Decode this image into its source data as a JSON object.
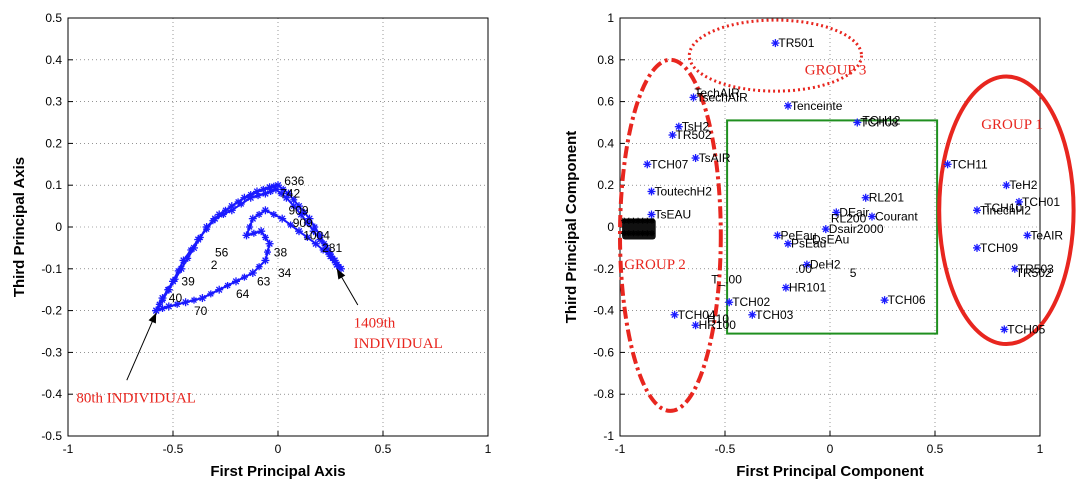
{
  "chart_data": [
    {
      "type": "scatter",
      "title": "",
      "xlabel": "First Principal Axis",
      "ylabel": "Third Principal Axis",
      "xlim": [
        -1,
        1
      ],
      "ylim": [
        -0.5,
        0.5
      ],
      "grid": true,
      "x_ticks": [
        "-1",
        "-0.5",
        "0",
        "0.5",
        "1"
      ],
      "y_ticks": [
        "0.5",
        "0.4",
        "0.3",
        "0.2",
        "0.1",
        "0",
        "-0.1",
        "-0.2",
        "-0.3",
        "-0.4",
        "-0.5"
      ],
      "marker_color": "#1a1aff",
      "loop": [
        [
          -0.58,
          -0.2
        ],
        [
          -0.52,
          -0.15
        ],
        [
          -0.46,
          -0.1
        ],
        [
          -0.4,
          -0.05
        ],
        [
          -0.34,
          0.0
        ],
        [
          -0.28,
          0.03
        ],
        [
          -0.22,
          0.05
        ],
        [
          -0.16,
          0.07
        ],
        [
          -0.1,
          0.085
        ],
        [
          -0.04,
          0.095
        ],
        [
          0.0,
          0.1
        ],
        [
          0.05,
          0.08
        ],
        [
          0.1,
          0.05
        ],
        [
          0.15,
          0.02
        ],
        [
          0.2,
          -0.02
        ],
        [
          0.24,
          -0.06
        ],
        [
          0.28,
          -0.09
        ],
        [
          0.3,
          -0.1
        ],
        [
          0.25,
          -0.07
        ],
        [
          0.18,
          -0.04
        ],
        [
          0.1,
          -0.01
        ],
        [
          0.02,
          0.02
        ],
        [
          -0.06,
          0.04
        ],
        [
          -0.12,
          0.02
        ],
        [
          -0.15,
          -0.02
        ],
        [
          -0.08,
          -0.01
        ],
        [
          -0.04,
          -0.04
        ],
        [
          -0.06,
          -0.08
        ],
        [
          -0.12,
          -0.11
        ],
        [
          -0.2,
          -0.13
        ],
        [
          -0.28,
          -0.15
        ],
        [
          -0.36,
          -0.17
        ],
        [
          -0.44,
          -0.18
        ],
        [
          -0.52,
          -0.19
        ],
        [
          -0.58,
          -0.2
        ],
        [
          -0.55,
          -0.17
        ],
        [
          -0.5,
          -0.13
        ],
        [
          -0.45,
          -0.08
        ],
        [
          -0.38,
          -0.03
        ],
        [
          -0.3,
          0.02
        ],
        [
          -0.22,
          0.04
        ],
        [
          -0.13,
          0.07
        ],
        [
          -0.06,
          0.08
        ],
        [
          -0.01,
          0.09
        ],
        [
          0.04,
          0.07
        ],
        [
          0.11,
          0.03
        ],
        [
          0.17,
          -0.01
        ],
        [
          0.23,
          -0.05
        ],
        [
          0.27,
          -0.08
        ]
      ],
      "point_labels": [
        {
          "text": "636",
          "x": 0.03,
          "y": 0.1
        },
        {
          "text": "742",
          "x": 0.01,
          "y": 0.07
        },
        {
          "text": "909",
          "x": 0.05,
          "y": 0.03
        },
        {
          "text": "909",
          "x": 0.07,
          "y": 0.0
        },
        {
          "text": "1004",
          "x": 0.12,
          "y": -0.03
        },
        {
          "text": "281",
          "x": 0.21,
          "y": -0.06
        },
        {
          "text": "2",
          "x": -0.32,
          "y": -0.1
        },
        {
          "text": "56",
          "x": -0.3,
          "y": -0.07
        },
        {
          "text": "39",
          "x": -0.46,
          "y": -0.14
        },
        {
          "text": "40",
          "x": -0.52,
          "y": -0.18
        },
        {
          "text": "70",
          "x": -0.4,
          "y": -0.21
        },
        {
          "text": "34",
          "x": 0.0,
          "y": -0.12
        },
        {
          "text": "38",
          "x": -0.02,
          "y": -0.07
        },
        {
          "text": "63",
          "x": -0.1,
          "y": -0.14
        },
        {
          "text": "64",
          "x": -0.2,
          "y": -0.17
        }
      ],
      "annotations": [
        {
          "text": "80th INDIVIDUAL",
          "tail": [
            -0.72,
            -0.4
          ],
          "head": [
            -0.58,
            -0.205
          ]
        },
        {
          "text": "1409th",
          "text2": "INDIVIDUAL",
          "tail": [
            0.38,
            -0.22
          ],
          "head": [
            0.28,
            -0.1
          ]
        }
      ]
    },
    {
      "type": "scatter",
      "title": "",
      "xlabel": "First Principal Component",
      "ylabel": "Third Principal Component",
      "xlim": [
        -1,
        1
      ],
      "ylim": [
        -1,
        1
      ],
      "grid": true,
      "x_ticks": [
        "-1",
        "-0.5",
        "0",
        "0.5",
        "1"
      ],
      "y_ticks": [
        "1",
        "0.8",
        "0.6",
        "0.4",
        "0.2",
        "0",
        "-0.2",
        "-0.4",
        "-0.6",
        "-0.8",
        "-1"
      ],
      "marker_color": "#1a1aff",
      "points": [
        {
          "label": "TR501",
          "x": -0.26,
          "y": 0.88
        },
        {
          "label": "TsechAIR",
          "x": -0.65,
          "y": 0.62
        },
        {
          "label": "Tenceinte",
          "x": -0.2,
          "y": 0.58
        },
        {
          "label": "TsH2",
          "x": -0.72,
          "y": 0.48
        },
        {
          "label": "TR502",
          "x": -0.75,
          "y": 0.44
        },
        {
          "label": "TsAIR",
          "x": -0.64,
          "y": 0.33
        },
        {
          "label": "TCH07",
          "x": -0.87,
          "y": 0.3
        },
        {
          "label": "ToutechH2",
          "x": -0.85,
          "y": 0.17
        },
        {
          "label": "TsEAU",
          "x": -0.85,
          "y": 0.06
        },
        {
          "label": "TCH08",
          "x": 0.13,
          "y": 0.5
        },
        {
          "label": "RL201",
          "x": 0.17,
          "y": 0.14
        },
        {
          "label": "Courant",
          "x": 0.2,
          "y": 0.05
        },
        {
          "label": "DEair",
          "x": 0.03,
          "y": 0.07
        },
        {
          "label": "Dsair2000",
          "x": -0.02,
          "y": -0.01
        },
        {
          "label": "PeEau",
          "x": -0.25,
          "y": -0.04
        },
        {
          "label": "PsEau",
          "x": -0.2,
          "y": -0.08
        },
        {
          "label": "DeH2",
          "x": -0.11,
          "y": -0.18
        },
        {
          "label": "HR101",
          "x": -0.21,
          "y": -0.29
        },
        {
          "label": "TCH02",
          "x": -0.48,
          "y": -0.36
        },
        {
          "label": "TCH03",
          "x": -0.37,
          "y": -0.42
        },
        {
          "label": "TCH04",
          "x": -0.74,
          "y": -0.42
        },
        {
          "label": "HR100",
          "x": -0.64,
          "y": -0.47
        },
        {
          "label": "TCH06",
          "x": 0.26,
          "y": -0.35
        },
        {
          "label": "TCH11",
          "x": 0.56,
          "y": 0.3
        },
        {
          "label": "TeH2",
          "x": 0.84,
          "y": 0.2
        },
        {
          "label": "TCH01",
          "x": 0.9,
          "y": 0.12
        },
        {
          "label": "TinechH2",
          "x": 0.7,
          "y": 0.08
        },
        {
          "label": "TeAIR",
          "x": 0.94,
          "y": -0.04
        },
        {
          "label": "TCH09",
          "x": 0.7,
          "y": -0.1
        },
        {
          "label": "TR503",
          "x": 0.88,
          "y": -0.2
        },
        {
          "label": "TCH05",
          "x": 0.83,
          "y": -0.49
        }
      ],
      "extra_labels": [
        {
          "text": "TCH10",
          "x": 0.72,
          "y": 0.09
        },
        {
          "text": "TR502",
          "x": 0.87,
          "y": -0.22
        },
        {
          "text": "TechAIR",
          "x": -0.66,
          "y": 0.64
        },
        {
          "text": "TCH12",
          "x": 0.14,
          "y": 0.51
        },
        {
          "text": "RL200",
          "x": -0.01,
          "y": 0.04
        },
        {
          "text": "DsEAu",
          "x": -0.1,
          "y": -0.06
        },
        {
          "text": ".00",
          "x": -0.18,
          "y": -0.2
        },
        {
          "text": "T_.00",
          "x": -0.58,
          "y": -0.25
        },
        {
          "text": "H10",
          "x": -0.6,
          "y": -0.44
        },
        {
          "text": "5",
          "x": 0.08,
          "y": -0.22
        }
      ],
      "annotations": [
        {
          "text": "GROUP 1"
        },
        {
          "text": "GROUP 2"
        },
        {
          "text": "GROUP 3"
        }
      ]
    }
  ],
  "colors": {
    "group_outline": "#e8261f",
    "box_outline": "#1f8f1f",
    "marker": "#1a1aff"
  }
}
